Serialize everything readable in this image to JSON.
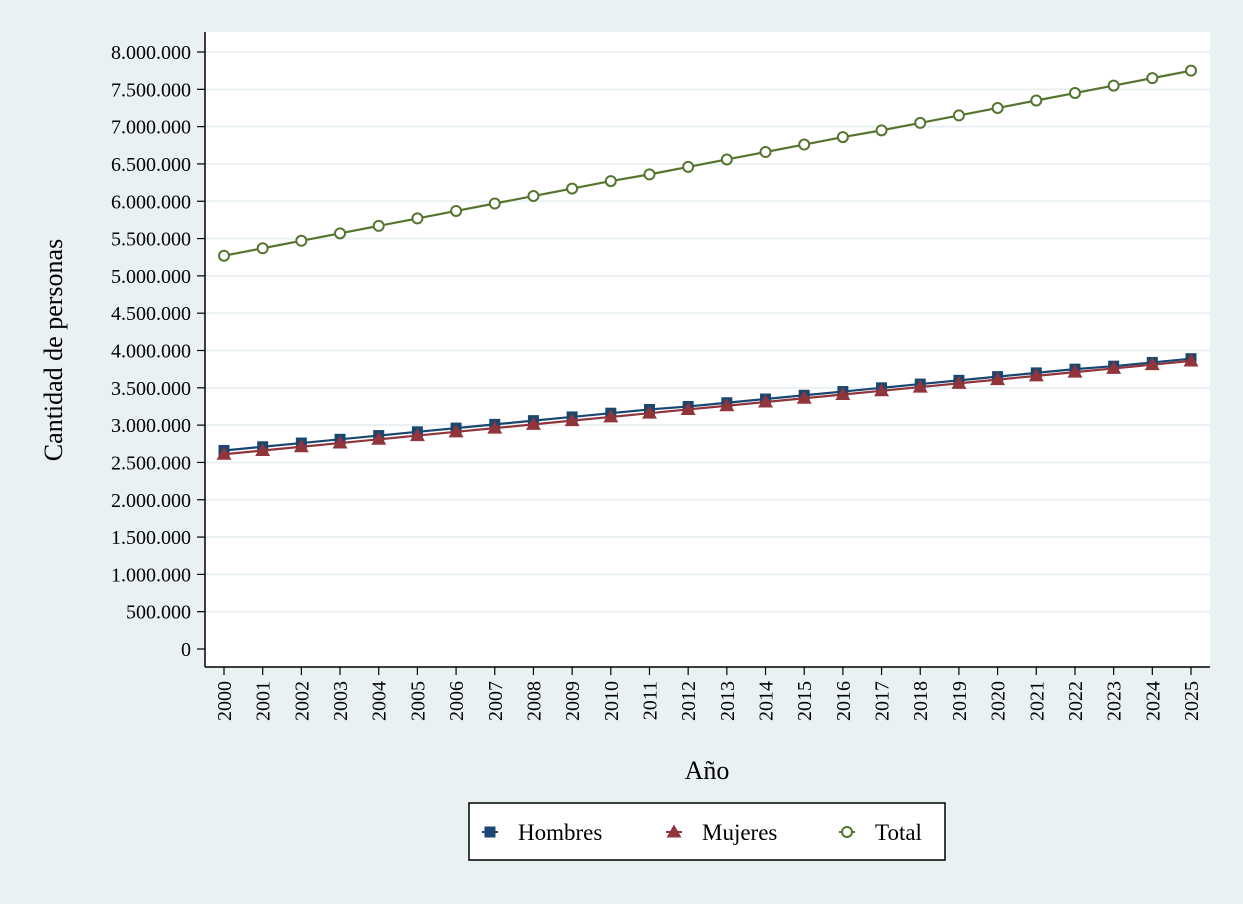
{
  "chart_data": {
    "type": "line",
    "title": "",
    "xlabel": "Año",
    "ylabel": "Cantidad de personas",
    "x": [
      2000,
      2001,
      2002,
      2003,
      2004,
      2005,
      2006,
      2007,
      2008,
      2009,
      2010,
      2011,
      2012,
      2013,
      2014,
      2015,
      2016,
      2017,
      2018,
      2019,
      2020,
      2021,
      2022,
      2023,
      2024,
      2025
    ],
    "x_tick_labels": [
      "2000",
      "2001",
      "2002",
      "2003",
      "2004",
      "2005",
      "2006",
      "2007",
      "2008",
      "2009",
      "2010",
      "2011",
      "2012",
      "2013",
      "2014",
      "2015",
      "2016",
      "2017",
      "2018",
      "2019",
      "2020",
      "2021",
      "2022",
      "2023",
      "2024",
      "2025"
    ],
    "ylim": [
      0,
      8000000
    ],
    "y_ticks": [
      0,
      500000,
      1000000,
      1500000,
      2000000,
      2500000,
      3000000,
      3500000,
      4000000,
      4500000,
      5000000,
      5500000,
      6000000,
      6500000,
      7000000,
      7500000,
      8000000
    ],
    "y_tick_labels": [
      "0",
      "500.000",
      "1.000.000",
      "1.500.000",
      "2.000.000",
      "2.500.000",
      "3.000.000",
      "3.500.000",
      "4.000.000",
      "4.500.000",
      "5.000.000",
      "5.500.000",
      "6.000.000",
      "6.500.000",
      "7.000.000",
      "7.500.000",
      "8.000.000"
    ],
    "grid": true,
    "legend_position": "bottom",
    "series": [
      {
        "name": "Hombres",
        "color": "#1a476f",
        "marker": "square",
        "values": [
          2660000,
          2710000,
          2760000,
          2810000,
          2860000,
          2910000,
          2960000,
          3010000,
          3060000,
          3110000,
          3160000,
          3210000,
          3250000,
          3300000,
          3350000,
          3400000,
          3450000,
          3500000,
          3550000,
          3600000,
          3650000,
          3700000,
          3750000,
          3790000,
          3840000,
          3890000
        ]
      },
      {
        "name": "Mujeres",
        "color": "#90353b",
        "marker": "triangle",
        "values": [
          2610000,
          2660000,
          2710000,
          2760000,
          2810000,
          2860000,
          2910000,
          2960000,
          3010000,
          3060000,
          3110000,
          3160000,
          3210000,
          3260000,
          3310000,
          3360000,
          3410000,
          3460000,
          3510000,
          3560000,
          3610000,
          3660000,
          3710000,
          3760000,
          3810000,
          3860000
        ]
      },
      {
        "name": "Total",
        "color": "#55752f",
        "marker": "hollow-circle",
        "values": [
          5270000,
          5370000,
          5470000,
          5570000,
          5670000,
          5770000,
          5870000,
          5970000,
          6070000,
          6170000,
          6270000,
          6360000,
          6460000,
          6560000,
          6660000,
          6760000,
          6860000,
          6950000,
          7050000,
          7150000,
          7250000,
          7350000,
          7450000,
          7550000,
          7650000,
          7750000
        ]
      }
    ]
  }
}
